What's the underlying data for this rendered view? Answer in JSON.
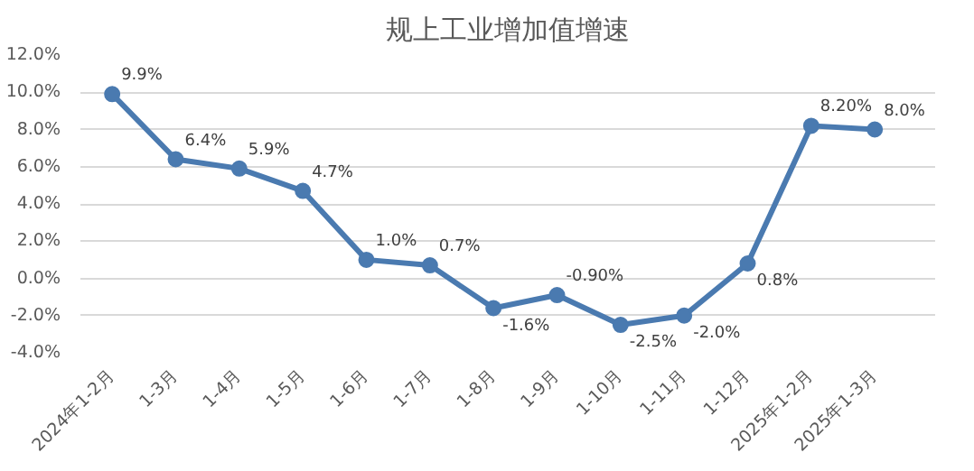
{
  "chart_data": {
    "type": "line",
    "title": "规上工业增加值增速",
    "categories": [
      "2024年1-2月",
      "1-3月",
      "1-4月",
      "1-5月",
      "1-6月",
      "1-7月",
      "1-8月",
      "1-9月",
      "1-10月",
      "1-11月",
      "1-12月",
      "2025年1-2月",
      "2025年1-3月"
    ],
    "series": [
      {
        "color": "#4a7ab0",
        "values": [
          9.9,
          6.4,
          5.9,
          4.7,
          1.0,
          0.7,
          -1.6,
          -0.9,
          -2.5,
          -2.0,
          0.8,
          8.2,
          8.0
        ],
        "value_labels": [
          "9.9%",
          "6.4%",
          "5.9%",
          "4.7%",
          "1.0%",
          "0.7%",
          "-1.6%",
          "-0.90%",
          "-2.5%",
          "-2.0%",
          "0.8%",
          "8.20%",
          "8.0%"
        ]
      }
    ],
    "ylim": [
      -4,
      12
    ],
    "yticks": [
      {
        "value": -4,
        "label": "-4.0%"
      },
      {
        "value": -2,
        "label": "-2.0%"
      },
      {
        "value": 0,
        "label": "0.0%"
      },
      {
        "value": 2,
        "label": "2.0%"
      },
      {
        "value": 4,
        "label": "4.0%"
      },
      {
        "value": 6,
        "label": "6.0%"
      },
      {
        "value": 8,
        "label": "8.0%"
      },
      {
        "value": 10,
        "label": "10.0%"
      },
      {
        "value": 12,
        "label": "12.0%"
      }
    ],
    "grid": "y",
    "marker": "circle",
    "line_style": "solid"
  }
}
